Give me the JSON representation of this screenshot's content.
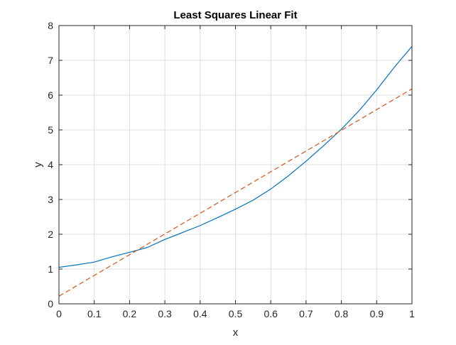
{
  "chart_data": {
    "type": "line",
    "title": "Least Squares Linear Fit",
    "xlabel": "x",
    "ylabel": "y",
    "xlim": [
      0,
      1
    ],
    "ylim": [
      0,
      8
    ],
    "xticks": [
      0,
      0.1,
      0.2,
      0.3,
      0.4,
      0.5,
      0.6,
      0.7,
      0.8,
      0.9,
      1
    ],
    "xtick_labels": [
      "0",
      "0.1",
      "0.2",
      "0.3",
      "0.4",
      "0.5",
      "0.6",
      "0.7",
      "0.8",
      "0.9",
      "1"
    ],
    "yticks": [
      0,
      1,
      2,
      3,
      4,
      5,
      6,
      7,
      8
    ],
    "ytick_labels": [
      "0",
      "1",
      "2",
      "3",
      "4",
      "5",
      "6",
      "7",
      "8"
    ],
    "grid": true,
    "series": [
      {
        "style": "solid",
        "color": "#0072bd",
        "x": [
          0,
          0.05,
          0.1,
          0.15,
          0.2,
          0.25,
          0.3,
          0.35,
          0.4,
          0.45,
          0.5,
          0.55,
          0.6,
          0.65,
          0.7,
          0.75,
          0.8,
          0.85,
          0.9,
          0.95,
          1.0
        ],
        "y": [
          1.05,
          1.12,
          1.2,
          1.35,
          1.48,
          1.62,
          1.85,
          2.05,
          2.25,
          2.48,
          2.72,
          2.98,
          3.3,
          3.68,
          4.1,
          4.55,
          5.02,
          5.55,
          6.15,
          6.8,
          7.4
        ]
      },
      {
        "style": "dashed",
        "color": "#d95319",
        "x": [
          0,
          1
        ],
        "y": [
          0.22,
          6.18
        ]
      }
    ]
  }
}
